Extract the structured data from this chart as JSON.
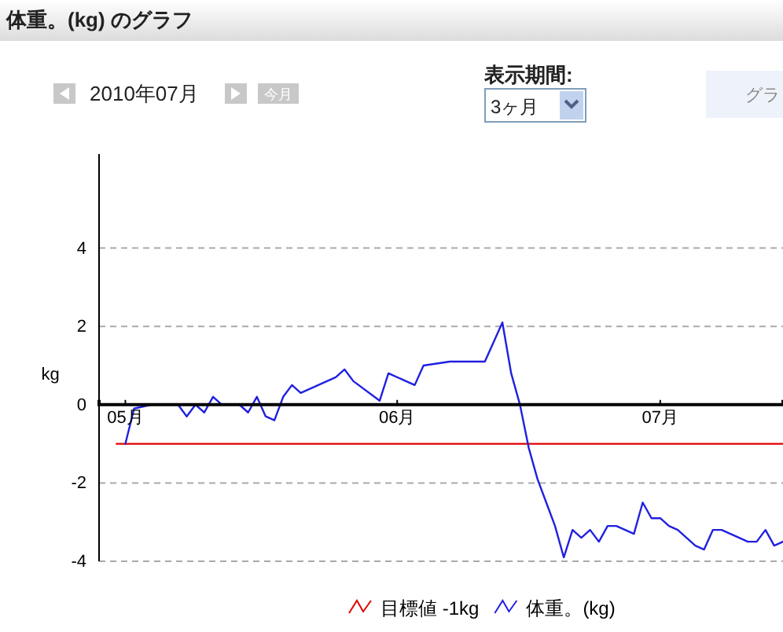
{
  "chart_data": {
    "type": "line",
    "title": "体重。(kg) のグラフ",
    "ylabel": "kg",
    "annotations": [
      "2010年07月",
      "今月",
      "表示期間:",
      "3ヶ月",
      "グラ"
    ],
    "xlim": [
      "2010-04-28",
      "2010-07-15"
    ],
    "xticks": [
      {
        "value": "2010-05-01",
        "label": "05月"
      },
      {
        "value": "2010-06-01",
        "label": "06月"
      },
      {
        "value": "2010-07-01",
        "label": "07月"
      }
    ],
    "ylim": [
      -4,
      6.4
    ],
    "yticks": [
      -4,
      -2,
      0,
      2,
      4
    ],
    "grid": "y",
    "legend": "bottom",
    "marker": "none",
    "line_style": "solid",
    "series": [
      {
        "name": "目標値 -1kg",
        "color": "#e00000",
        "x": [
          "2010-04-30",
          "2010-07-15"
        ],
        "values": [
          -1,
          -1
        ]
      },
      {
        "name": "体重。(kg)",
        "color": "#2020e0",
        "x": [
          "2010-05-01",
          "2010-05-02",
          "2010-05-04",
          "2010-05-07",
          "2010-05-08",
          "2010-05-09",
          "2010-05-10",
          "2010-05-11",
          "2010-05-12",
          "2010-05-14",
          "2010-05-15",
          "2010-05-16",
          "2010-05-17",
          "2010-05-18",
          "2010-05-19",
          "2010-05-20",
          "2010-05-21",
          "2010-05-25",
          "2010-05-26",
          "2010-05-27",
          "2010-05-30",
          "2010-05-31",
          "2010-06-03",
          "2010-06-04",
          "2010-06-07",
          "2010-06-11",
          "2010-06-13",
          "2010-06-14",
          "2010-06-15",
          "2010-06-16",
          "2010-06-17",
          "2010-06-18",
          "2010-06-19",
          "2010-06-20",
          "2010-06-21",
          "2010-06-22",
          "2010-06-23",
          "2010-06-24",
          "2010-06-25",
          "2010-06-26",
          "2010-06-28",
          "2010-06-29",
          "2010-06-30",
          "2010-07-01",
          "2010-07-02",
          "2010-07-03",
          "2010-07-05",
          "2010-07-06",
          "2010-07-07",
          "2010-07-08",
          "2010-07-11",
          "2010-07-12",
          "2010-07-13",
          "2010-07-14",
          "2010-07-15"
        ],
        "values": [
          -1,
          -0.1,
          0,
          0,
          -0.3,
          0,
          -0.2,
          0.2,
          0,
          0,
          -0.2,
          0.2,
          -0.3,
          -0.4,
          0.2,
          0.5,
          0.3,
          0.7,
          0.9,
          0.6,
          0.1,
          0.8,
          0.5,
          1,
          1.1,
          1.1,
          2.1,
          0.8,
          0,
          -1.1,
          -1.9,
          -2.5,
          -3.1,
          -3.9,
          -3.2,
          -3.4,
          -3.2,
          -3.5,
          -3.1,
          -3.1,
          -3.3,
          -2.5,
          -2.9,
          -2.9,
          -3.1,
          -3.2,
          -3.6,
          -3.7,
          -3.2,
          -3.2,
          -3.5,
          -3.5,
          -3.2,
          -3.6,
          -3.5
        ]
      }
    ]
  }
}
